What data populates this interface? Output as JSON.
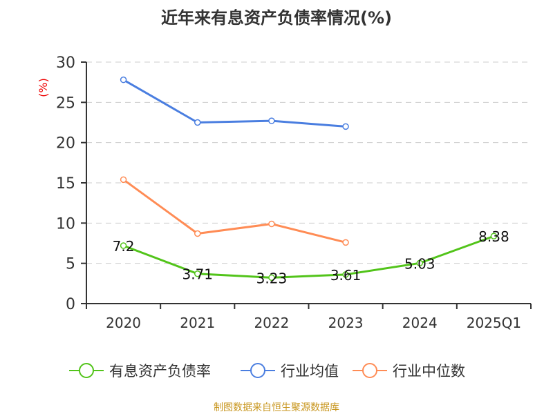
{
  "chart_data": {
    "type": "line",
    "title": "近年来有息资产负债率情况(%)",
    "ylabel": "(%)",
    "categories": [
      "2020",
      "2021",
      "2022",
      "2023",
      "2024",
      "2025Q1"
    ],
    "ylim": [
      0,
      30
    ],
    "yticks": [
      0,
      5,
      10,
      15,
      20,
      25,
      30
    ],
    "grid": true,
    "legend_position": "bottom",
    "series": [
      {
        "name": "有息资产负债率",
        "color": "#52c41a",
        "values": [
          7.2,
          3.71,
          3.23,
          3.61,
          5.03,
          8.38
        ],
        "labels": [
          "7.2",
          "3.71",
          "3.23",
          "3.61",
          "5.03",
          "8.38"
        ]
      },
      {
        "name": "行业均值",
        "color": "#4a7ee0",
        "values": [
          27.8,
          22.5,
          22.7,
          22.0,
          null,
          null
        ]
      },
      {
        "name": "行业中位数",
        "color": "#ff8c55",
        "values": [
          15.4,
          8.7,
          9.9,
          7.6,
          null,
          null
        ]
      }
    ]
  },
  "source": "制图数据来自恒生聚源数据库"
}
